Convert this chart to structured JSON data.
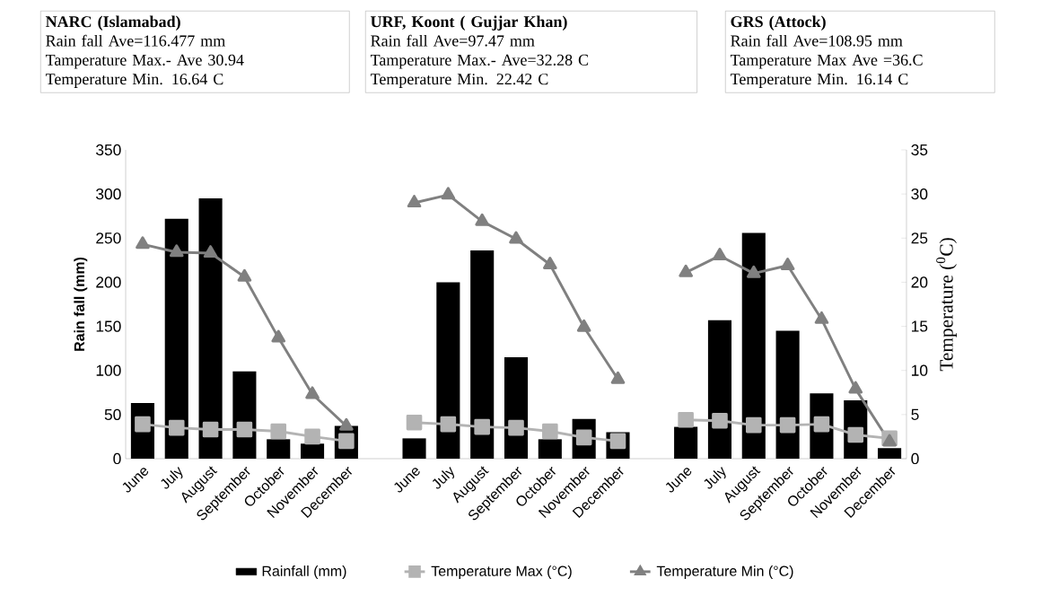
{
  "chart_data": {
    "type": "bar",
    "categories": [
      "June",
      "July",
      "August",
      "September",
      "October",
      "November",
      "December",
      null,
      "June",
      "July",
      "August",
      "September",
      "October",
      "November",
      "December",
      null,
      "June",
      "July",
      "August",
      "September",
      "October",
      "November",
      "December"
    ],
    "series": [
      {
        "name": "Rainfall (mm)",
        "color": "#000000",
        "values": [
          63,
          272,
          295,
          99,
          22,
          17,
          37,
          null,
          23,
          200,
          236,
          115,
          22,
          45,
          30,
          null,
          36,
          157,
          256,
          145,
          74,
          66,
          12
        ]
      },
      {
        "name": "Temperature Max (°C)",
        "type": "line",
        "axis": "y2",
        "marker": "square",
        "color": "#b3b3b3",
        "values": [
          3.9,
          3.5,
          3.3,
          3.3,
          3.1,
          2.5,
          2.0,
          null,
          4.1,
          3.9,
          3.6,
          3.5,
          3.1,
          2.4,
          2.0,
          null,
          4.4,
          4.3,
          3.8,
          3.8,
          3.9,
          2.7,
          2.3
        ]
      },
      {
        "name": "Temperature Min (°C)",
        "type": "line",
        "axis": "y2",
        "marker": "triangle",
        "color": "#808080",
        "values": [
          24.3,
          23.4,
          23.3,
          20.6,
          13.7,
          7.3,
          3.7,
          null,
          29.0,
          29.9,
          26.9,
          24.9,
          22.0,
          14.9,
          9.0,
          null,
          21.1,
          23.0,
          21.0,
          21.9,
          15.8,
          7.9,
          1.9
        ]
      }
    ],
    "ylabel": "Rain fall (mm)",
    "y2label": "Temperature ($^{0}$C)",
    "ylim": [
      0,
      350
    ],
    "yticks": [
      0,
      50,
      100,
      150,
      200,
      250,
      300,
      350
    ],
    "y2lim": [
      0,
      35
    ],
    "y2ticks": [
      0,
      5,
      10,
      15,
      20,
      25,
      30,
      35
    ],
    "legend": "bottom",
    "grid": false,
    "annotations": [
      "NARC (Islamabad)",
      "Rain fall Ave=116.477 mm",
      "Tamperature Max.- Ave 30.94",
      "Temperature Min. 16.64 C",
      "URF, Koont ( Gujjar  Khan)",
      "Rain fall Ave=97.47 mm",
      "Tamperature Max.- Ave=32.28 C",
      "Temperature Min. 22.42 C",
      "GRS (Attock)",
      "Rain fall Ave=108.95 mm",
      "Tamperature Max Ave =36.C",
      "Temperature Min. 16.14 C"
    ]
  }
}
